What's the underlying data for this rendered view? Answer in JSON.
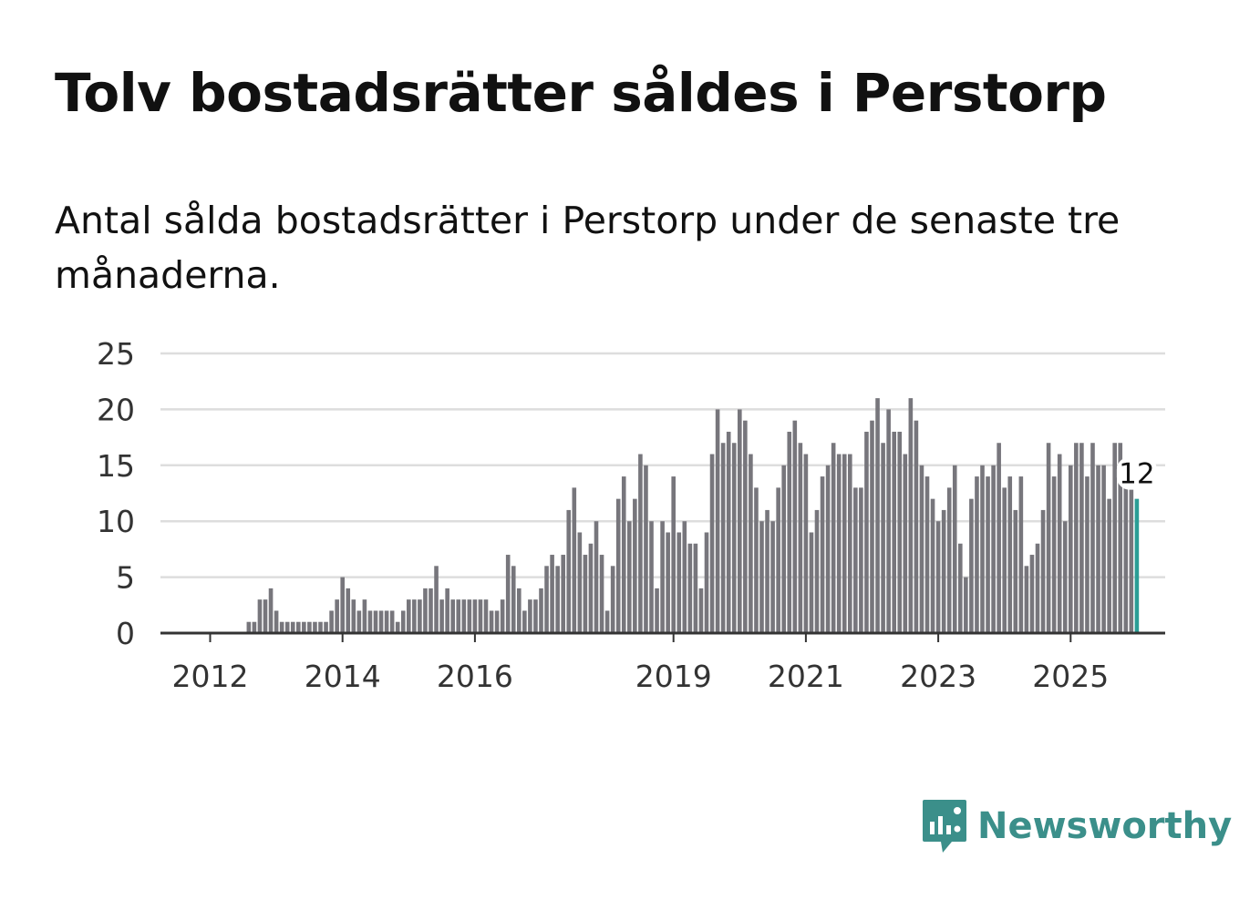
{
  "title": "Tolv bostadsrätter såldes i Perstorp",
  "subtitle": "Antal sålda bostadsrätter i Perstorp under de senaste tre månaderna.",
  "brand": {
    "name": "Newsworthy",
    "color": "#3b8f8a",
    "icon": "newsworthy-logo-icon"
  },
  "colors": {
    "bar": "#77767c",
    "highlight": "#2a9d95",
    "grid": "#dddddd",
    "axis": "#333333"
  },
  "chart_data": {
    "type": "bar",
    "title": "Tolv bostadsrätter såldes i Perstorp",
    "xlabel": "",
    "ylabel": "",
    "ylim": [
      0,
      25
    ],
    "yticks": [
      0,
      5,
      10,
      15,
      20,
      25
    ],
    "xticks": [
      {
        "label": "2012",
        "index": 0
      },
      {
        "label": "2014",
        "index": 24
      },
      {
        "label": "2016",
        "index": 48
      },
      {
        "label": "2019",
        "index": 84
      },
      {
        "label": "2021",
        "index": 108
      },
      {
        "label": "2023",
        "index": 132
      },
      {
        "label": "2025",
        "index": 156
      }
    ],
    "start": "2012-01",
    "values": [
      0,
      0,
      0,
      0,
      0,
      0,
      0,
      1,
      1,
      3,
      3,
      4,
      2,
      1,
      1,
      1,
      1,
      1,
      1,
      1,
      1,
      1,
      2,
      3,
      5,
      4,
      3,
      2,
      3,
      2,
      2,
      2,
      2,
      2,
      1,
      2,
      3,
      3,
      3,
      4,
      4,
      6,
      3,
      4,
      3,
      3,
      3,
      3,
      3,
      3,
      3,
      2,
      2,
      3,
      7,
      6,
      4,
      2,
      3,
      3,
      4,
      6,
      7,
      6,
      7,
      11,
      13,
      9,
      7,
      8,
      10,
      7,
      2,
      6,
      12,
      14,
      10,
      12,
      16,
      15,
      10,
      4,
      10,
      9,
      14,
      9,
      10,
      8,
      8,
      4,
      9,
      16,
      20,
      17,
      18,
      17,
      20,
      19,
      16,
      13,
      10,
      11,
      10,
      13,
      15,
      18,
      19,
      17,
      16,
      9,
      11,
      14,
      15,
      17,
      16,
      16,
      16,
      13,
      13,
      18,
      19,
      21,
      17,
      20,
      18,
      18,
      16,
      21,
      19,
      15,
      14,
      12,
      10,
      11,
      13,
      15,
      8,
      5,
      12,
      14,
      15,
      14,
      15,
      17,
      13,
      14,
      11,
      14,
      6,
      7,
      8,
      11,
      17,
      14,
      16,
      10,
      15,
      17,
      17,
      14,
      17,
      15,
      15,
      12,
      17,
      17,
      14,
      13,
      12
    ],
    "highlight": {
      "label": "12",
      "value": 12
    }
  }
}
